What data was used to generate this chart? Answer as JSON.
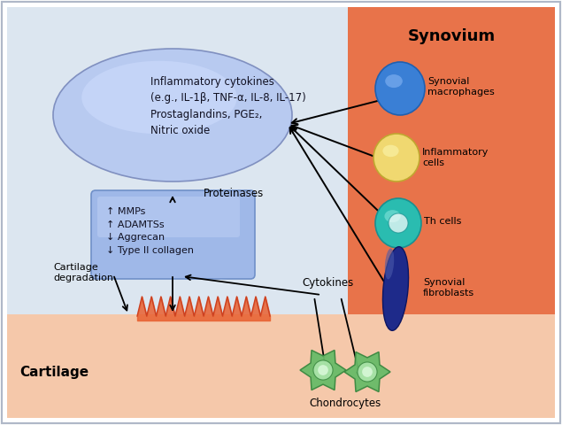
{
  "bg_left_color": "#dce6f0",
  "bg_right_color": "#e8734a",
  "bg_cartilage_color": "#f5c8aa",
  "synovium_label": "Synovium",
  "cartilage_label": "Cartilage",
  "ellipse_color": "#9fb8e8",
  "ellipse_text": "Inflammatory cytokines\n(e.g., IL-1β, TNF-α, IL-8, IL-17)\nProstaglandins, PGE₂,\nNitric oxide",
  "box_color": "#9fb8e8",
  "box_text": "↑ MMPs\n↑ ADAMTSs\n↓ Aggrecan\n↓ Type II collagen",
  "proteinases_label": "Proteinases",
  "cytokines_label": "Cytokines",
  "cartilage_deg_label": "Cartilage\ndegradation",
  "chondrocytes_label": "Chondrocytes",
  "border_color": "#b0b8c8",
  "arrow_color": "black",
  "text_color": "#111111"
}
